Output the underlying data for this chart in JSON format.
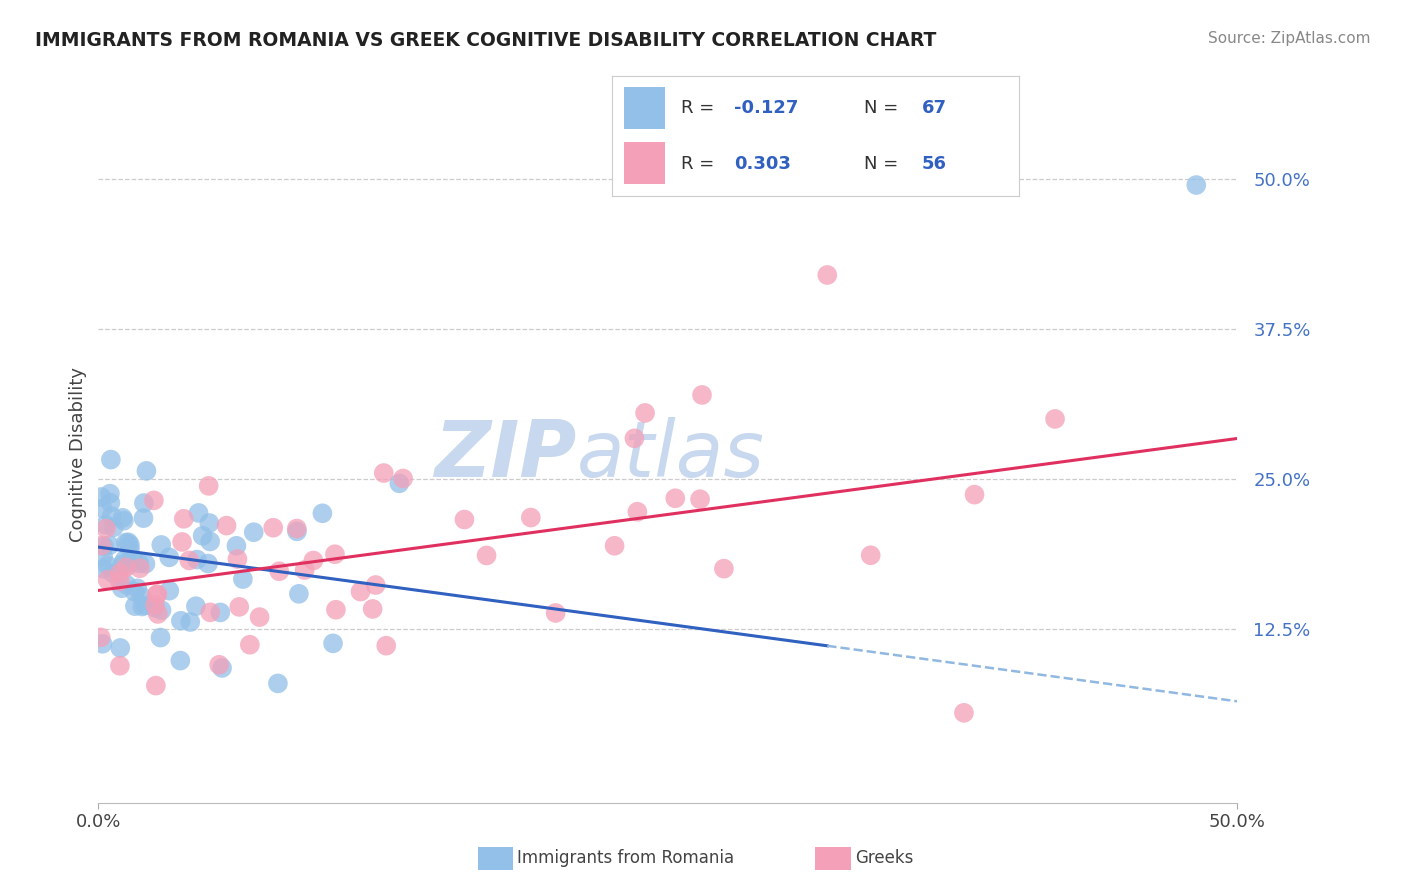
{
  "title": "IMMIGRANTS FROM ROMANIA VS GREEK COGNITIVE DISABILITY CORRELATION CHART",
  "source": "Source: ZipAtlas.com",
  "ylabel": "Cognitive Disability",
  "right_ytick_labels": [
    "50.0%",
    "37.5%",
    "25.0%",
    "12.5%"
  ],
  "right_ytick_values": [
    0.5,
    0.375,
    0.25,
    0.125
  ],
  "xlim": [
    0.0,
    0.5
  ],
  "ylim": [
    -0.02,
    0.56
  ],
  "series1_color": "#92C0E8",
  "series2_color": "#F4A0B8",
  "trendline1_color": "#3060C0",
  "trendline2_color": "#E03060",
  "trendline1_dashed_color": "#90B8E0",
  "watermark_zip": "ZIP",
  "watermark_atlas": "atlas",
  "watermark_color": "#C8D8EE",
  "background_color": "#FFFFFF",
  "grid_color": "#CCCCCC",
  "series1_name": "Immigrants from Romania",
  "series2_name": "Greeks",
  "series1_R": -0.127,
  "series1_N": 67,
  "series2_R": 0.303,
  "series2_N": 56,
  "legend_text_color": "#333333",
  "legend_value_color": "#3060C0",
  "title_color": "#222222",
  "source_color": "#888888",
  "axis_label_color": "#444444",
  "right_tick_color": "#4472C4"
}
